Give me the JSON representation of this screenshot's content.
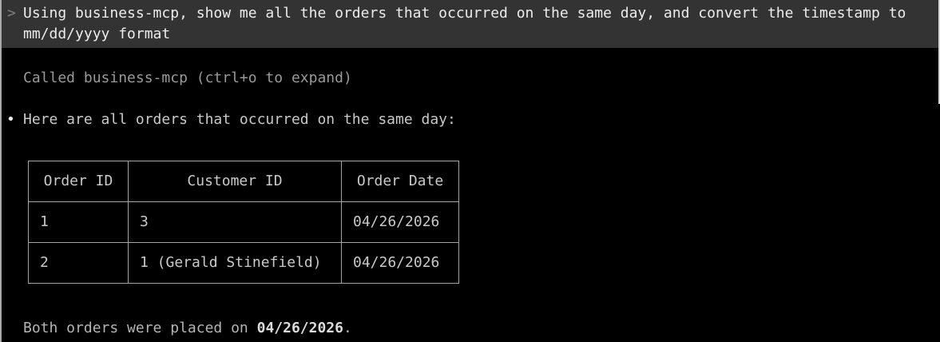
{
  "terminal": {
    "prompt": {
      "chevron": ">",
      "text": "Using business-mcp, show me all the orders that occurred on the same day, and convert the timestamp to mm/dd/yyyy format"
    },
    "tool_call": {
      "text": "Called business-mcp (ctrl+o to expand)"
    },
    "response": {
      "bullet": "•",
      "intro": "Here are all orders that occurred on the same day:",
      "table": {
        "headers": [
          "Order ID",
          "Customer ID",
          "Order Date"
        ],
        "rows": [
          [
            "1",
            "3",
            "04/26/2026"
          ],
          [
            "2",
            "1 (Gerald Stinefield)",
            "04/26/2026"
          ]
        ]
      },
      "summary_prefix": "Both orders were placed on ",
      "summary_date": "04/26/2026",
      "summary_suffix": "."
    },
    "colors": {
      "background": "#000000",
      "prompt_box_bg": "#333333",
      "prompt_text": "#ececec",
      "muted_text": "#9a9a9a",
      "body_text": "#c9c9c9",
      "summary_text": "#b5b5b5",
      "table_border": "#a4a4a4",
      "page_border": "#a9a9a9"
    }
  }
}
